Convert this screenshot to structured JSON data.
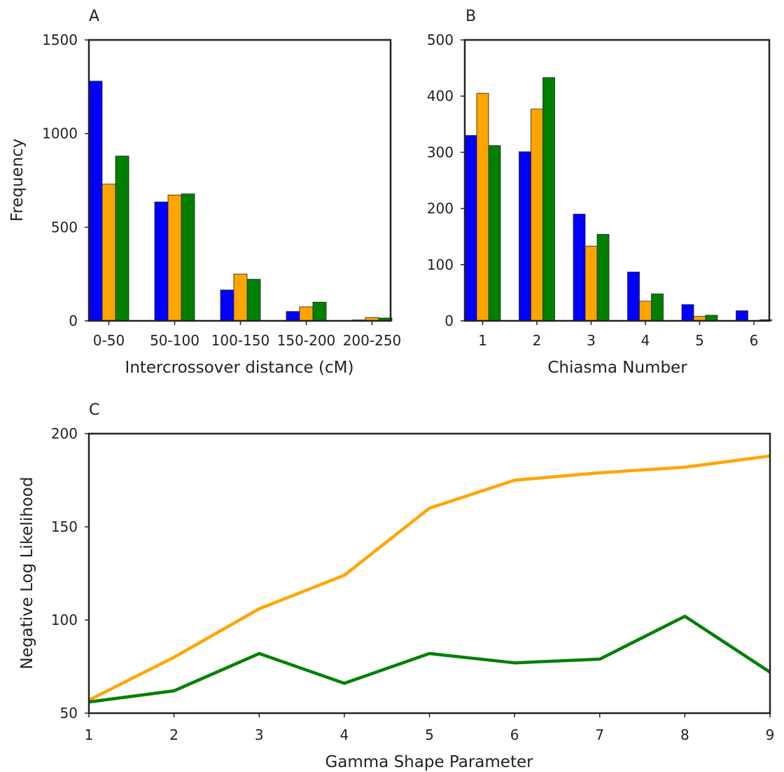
{
  "chart_data": [
    {
      "type": "bar",
      "panel": "A",
      "xlabel": "Intercrossover distance (cM)",
      "ylabel": "Frequency",
      "categories": [
        "0-50",
        "50-100",
        "100-150",
        "150-200",
        "200-250"
      ],
      "series": [
        {
          "color": "#0000ff",
          "values": [
            1280,
            635,
            165,
            50,
            5
          ]
        },
        {
          "color": "#ffa500",
          "values": [
            730,
            672,
            250,
            75,
            18
          ]
        },
        {
          "color": "#008000",
          "values": [
            880,
            678,
            222,
            100,
            15
          ]
        }
      ],
      "ylim": [
        0,
        1500
      ],
      "yticks": [
        0,
        500,
        1000,
        1500
      ]
    },
    {
      "type": "bar",
      "panel": "B",
      "xlabel": "Chiasma Number",
      "ylabel": "",
      "categories": [
        "1",
        "2",
        "3",
        "4",
        "5",
        "6"
      ],
      "series": [
        {
          "color": "#0000ff",
          "values": [
            330,
            301,
            190,
            87,
            29,
            18
          ]
        },
        {
          "color": "#ffa500",
          "values": [
            405,
            377,
            133,
            35,
            8,
            0
          ]
        },
        {
          "color": "#008000",
          "values": [
            312,
            433,
            154,
            48,
            10,
            2
          ]
        }
      ],
      "ylim": [
        0,
        500
      ],
      "yticks": [
        0,
        100,
        200,
        300,
        400,
        500
      ]
    },
    {
      "type": "line",
      "panel": "C",
      "xlabel": "Gamma Shape Parameter",
      "ylabel": "Negative Log Likelihood",
      "x": [
        1,
        2,
        3,
        4,
        5,
        6,
        7,
        8,
        9
      ],
      "series": [
        {
          "color": "#ffa500",
          "values": [
            57,
            80,
            106,
            124,
            160,
            175,
            179,
            182,
            188
          ]
        },
        {
          "color": "#008000",
          "values": [
            56,
            62,
            82,
            66,
            82,
            77,
            79,
            102,
            72
          ]
        }
      ],
      "xlim": [
        1,
        9
      ],
      "ylim": [
        50,
        200
      ],
      "xticks": [
        1,
        2,
        3,
        4,
        5,
        6,
        7,
        8,
        9
      ],
      "yticks": [
        50,
        100,
        150,
        200
      ]
    }
  ]
}
